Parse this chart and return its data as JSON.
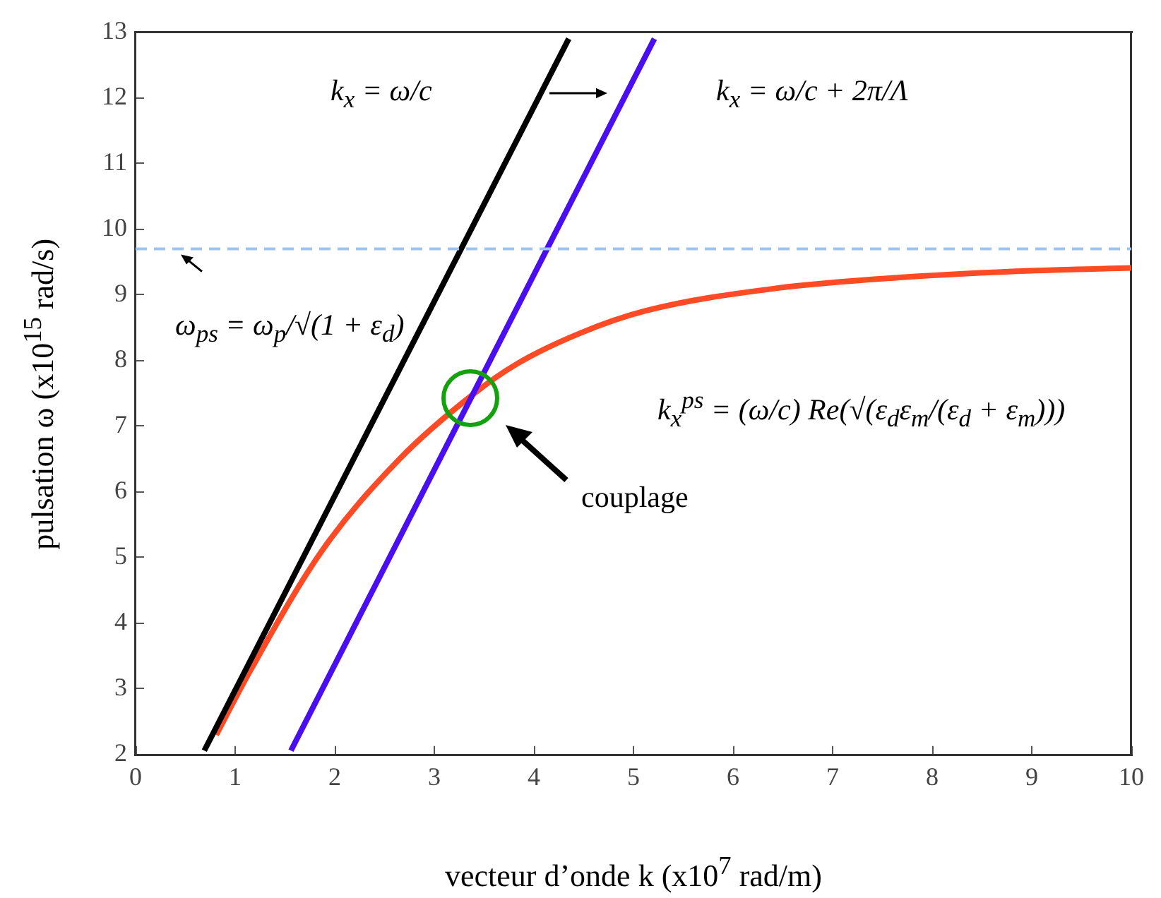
{
  "chart_data": {
    "type": "line",
    "xlabel": "vecteur d’onde k (x10$^{7}$ rad/m)",
    "ylabel": "pulsation ω (x10$^{15}$ rad/s)",
    "xlim": [
      0,
      10
    ],
    "xticks": [
      0,
      1,
      2,
      3,
      4,
      5,
      6,
      7,
      8,
      9,
      10
    ],
    "ylim": [
      2,
      13
    ],
    "yticks": [
      2,
      3,
      4,
      5,
      6,
      7,
      8,
      9,
      10,
      11,
      12,
      13
    ],
    "grid": false,
    "legend": false,
    "marker": "none",
    "line_style": "solid",
    "series": [
      {
        "name": "k$_{x}$ = ω/c",
        "color": "#000000",
        "x": [
          0.69,
          4.35
        ],
        "values": [
          2.06,
          12.9
        ]
      },
      {
        "name": "k$_{x}$ = ω/c + 2π/Λ",
        "color": "#4a0ff0",
        "x": [
          1.56,
          5.21
        ],
        "values": [
          2.06,
          12.9
        ]
      },
      {
        "name": "k$_{x}$$^{ps}$ = (ω/c) Re(√(ε$_{d}$ε$_{m}$/(ε$_{d}$ + ε$_{m}$)))",
        "color": "#ff4a26",
        "x": [
          0.81,
          1.16,
          1.87,
          2.65,
          3.41,
          3.83,
          4.47,
          5.13,
          6.43,
          7.73,
          9.04,
          10
        ],
        "values": [
          2.3,
          3.3,
          5.1,
          6.5,
          7.51,
          7.95,
          8.42,
          8.76,
          9.1,
          9.27,
          9.37,
          9.41
        ]
      }
    ],
    "ref_lines": [
      {
        "axis": "y",
        "value": 9.7,
        "label": "ω$_{ps}$ = ω$_{p}$/√(1 + ε$_{d}$)",
        "color": "#9dc3f0",
        "line_style": "dashed"
      }
    ],
    "annotations": [
      "couplage"
    ]
  }
}
